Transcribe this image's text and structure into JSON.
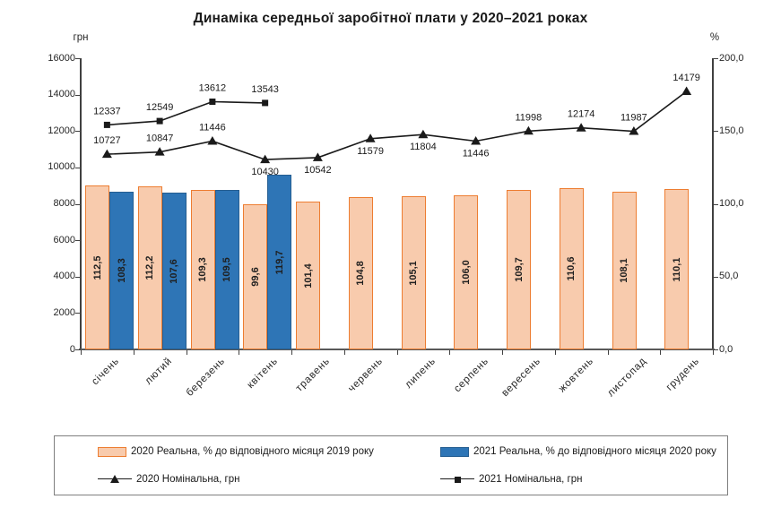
{
  "title": "Динаміка середньої заробітної плати у 2020–2021 роках",
  "chart_data": {
    "type": "bar",
    "subtype": "combo-bar-line-dual-axis",
    "title": "Динаміка середньої заробітної плати у 2020–2021 роках",
    "grid": false,
    "legend_position": "bottom",
    "categories": [
      "січень",
      "лютий",
      "березень",
      "квітень",
      "травень",
      "червень",
      "липень",
      "серпень",
      "вересень",
      "жовтень",
      "листопад",
      "грудень"
    ],
    "left_axis": {
      "label": "грн",
      "min": 0,
      "max": 16000,
      "tick_step": 2000,
      "ticks": [
        "0",
        "2000",
        "4000",
        "6000",
        "8000",
        "10000",
        "12000",
        "14000",
        "16000"
      ]
    },
    "right_axis": {
      "label": "%",
      "min": 0,
      "max": 200,
      "tick_step": 50,
      "ticks": [
        "0,0",
        "50,0",
        "100,0",
        "150,0",
        "200,0"
      ]
    },
    "series": [
      {
        "name": "2020 Реальна, % до відповідного місяця 2019 року",
        "type": "bar",
        "axis": "right",
        "fill": "#F8CBAD",
        "border": "#ED7D31",
        "values": [
          112.5,
          112.2,
          109.3,
          99.6,
          101.4,
          104.8,
          105.1,
          106.0,
          109.7,
          110.6,
          108.1,
          110.1
        ],
        "labels": [
          "112,5",
          "112,2",
          "109,3",
          "99,6",
          "101,4",
          "104,8",
          "105,1",
          "106,0",
          "109,7",
          "110,6",
          "108,1",
          "110,1"
        ]
      },
      {
        "name": "2021 Реальна, % до відповідного місяця 2020 року",
        "type": "bar",
        "axis": "right",
        "fill": "#2E75B6",
        "border": "#255E91",
        "values": [
          108.3,
          107.6,
          109.5,
          119.7
        ],
        "labels": [
          "108,3",
          "107,6",
          "109,5",
          "119,7"
        ]
      },
      {
        "name": "2020 Номінальна, грн",
        "type": "line",
        "axis": "left",
        "marker": "triangle",
        "color": "#1a1a1a",
        "values": [
          10727,
          10847,
          11446,
          10430,
          10542,
          11579,
          11804,
          11446,
          11998,
          12174,
          11987,
          14179
        ],
        "labels": [
          "10727",
          "10847",
          "11446",
          "10430",
          "10542",
          "11579",
          "11804",
          "11446",
          "11998",
          "12174",
          "11987",
          "14179"
        ],
        "label_positions": [
          "above",
          "above",
          "above",
          "below",
          "below",
          "below",
          "below",
          "below",
          "above",
          "above",
          "above",
          "above"
        ]
      },
      {
        "name": "2021 Номінальна, грн",
        "type": "line",
        "axis": "left",
        "marker": "square",
        "color": "#1a1a1a",
        "values": [
          12337,
          12549,
          13612,
          13543
        ],
        "labels": [
          "12337",
          "12549",
          "13612",
          "13543"
        ],
        "label_positions": [
          "above",
          "above",
          "above",
          "above"
        ]
      }
    ]
  }
}
